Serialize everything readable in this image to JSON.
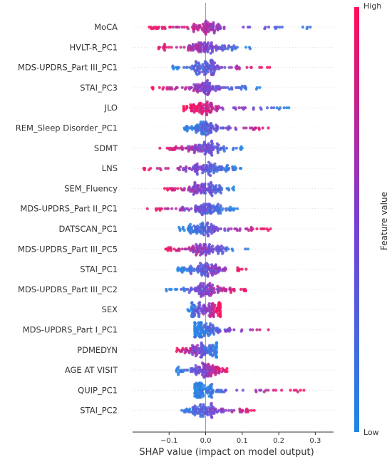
{
  "chart_data": {
    "type": "scatter",
    "subtype": "shap-beeswarm",
    "xlabel": "SHAP value (impact on model output)",
    "xlim": [
      -0.2,
      0.35
    ],
    "xticks": [
      -0.1,
      0.0,
      0.1,
      0.2,
      0.3
    ],
    "xtick_labels": [
      "−0.1",
      "0.0",
      "0.1",
      "0.2",
      "0.3"
    ],
    "zero_line": 0,
    "colorbar": {
      "label": "Feature value",
      "high_label": "High",
      "low_label": "Low",
      "low_color": "#1e88e5",
      "high_color": "#ff0d57"
    },
    "features": [
      {
        "name": "MoCA",
        "lo": -0.16,
        "hi": 0.33,
        "high_side": "left"
      },
      {
        "name": "HVLT-R_PC1",
        "lo": -0.13,
        "hi": 0.14,
        "high_side": "left"
      },
      {
        "name": "MDS-UPDRS_Part III_PC1",
        "lo": -0.09,
        "hi": 0.18,
        "high_side": "right"
      },
      {
        "name": "STAI_PC3",
        "lo": -0.15,
        "hi": 0.15,
        "high_side": "left"
      },
      {
        "name": "JLO",
        "lo": -0.06,
        "hi": 0.25,
        "high_side": "left"
      },
      {
        "name": "REM_Sleep Disorder_PC1",
        "lo": -0.06,
        "hi": 0.18,
        "high_side": "right"
      },
      {
        "name": "SDMT",
        "lo": -0.13,
        "hi": 0.1,
        "high_side": "left"
      },
      {
        "name": "LNS",
        "lo": -0.17,
        "hi": 0.1,
        "high_side": "left"
      },
      {
        "name": "SEM_Fluency",
        "lo": -0.12,
        "hi": 0.08,
        "high_side": "left"
      },
      {
        "name": "MDS-UPDRS_Part II_PC1",
        "lo": -0.17,
        "hi": 0.09,
        "high_side": "left"
      },
      {
        "name": "DATSCAN_PC1",
        "lo": -0.08,
        "hi": 0.18,
        "high_side": "right"
      },
      {
        "name": "MDS-UPDRS_Part III_PC5",
        "lo": -0.11,
        "hi": 0.12,
        "high_side": "left"
      },
      {
        "name": "STAI_PC1",
        "lo": -0.08,
        "hi": 0.12,
        "high_side": "right"
      },
      {
        "name": "MDS-UPDRS_Part III_PC2",
        "lo": -0.11,
        "hi": 0.11,
        "high_side": "right"
      },
      {
        "name": "SEX",
        "lo": -0.05,
        "hi": 0.04,
        "high_side": "right"
      },
      {
        "name": "MDS-UPDRS_Part I_PC1",
        "lo": -0.03,
        "hi": 0.18,
        "high_side": "right"
      },
      {
        "name": "PDMEDYN",
        "lo": -0.08,
        "hi": 0.03,
        "high_side": "left"
      },
      {
        "name": "AGE AT VISIT",
        "lo": -0.08,
        "hi": 0.06,
        "high_side": "right"
      },
      {
        "name": "QUIP_PC1",
        "lo": -0.03,
        "hi": 0.27,
        "high_side": "right"
      },
      {
        "name": "STAI_PC2",
        "lo": -0.07,
        "hi": 0.14,
        "high_side": "right"
      }
    ]
  }
}
